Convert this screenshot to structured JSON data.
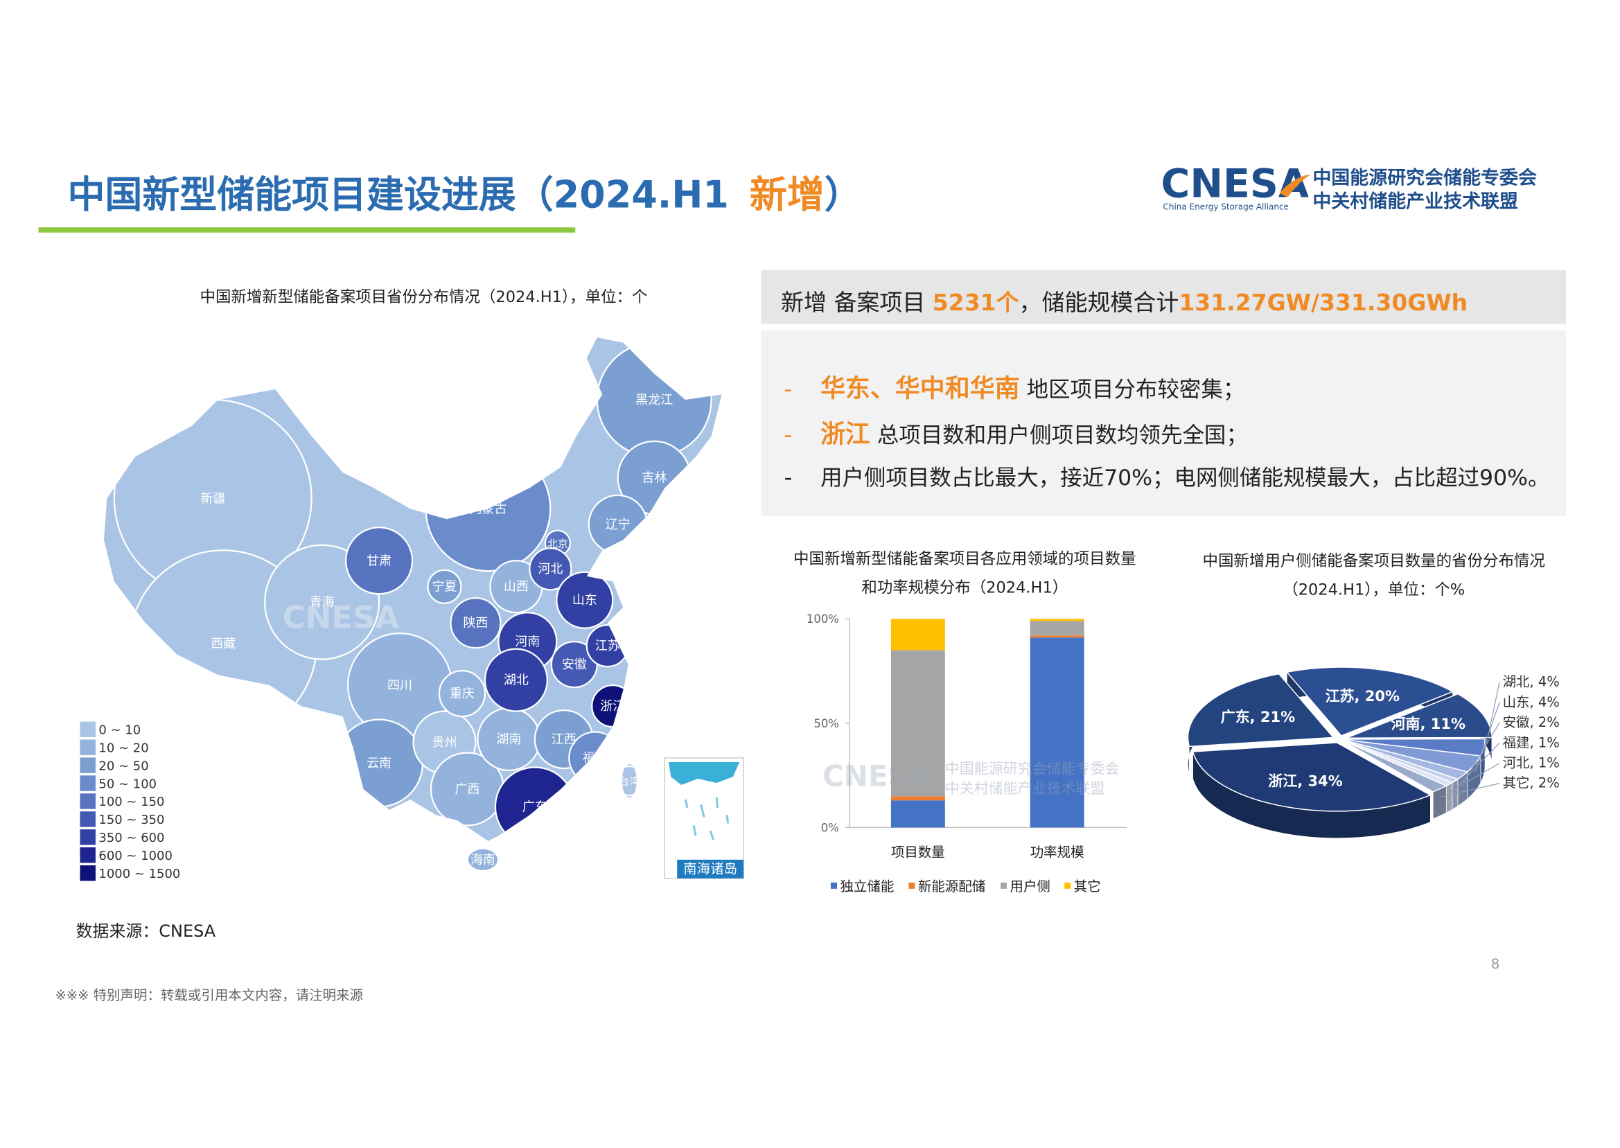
{
  "header": {
    "title": "中国新型储能项目建设进展（2024.H1",
    "title_highlight": "新增",
    "title_close": "）",
    "logo": "CNESA",
    "logo_sub": "China Energy Storage Alliance",
    "org_1": "中国能源研究会储能专委会",
    "org_2": "中关村储能产业技术联盟"
  },
  "map": {
    "title": "中国新增新型储能备案项目省份分布情况（2024.H1），单位：个",
    "legend": [
      {
        "label": "0 ~ 10",
        "color": "#a9c4e4"
      },
      {
        "label": "10 ~ 20",
        "color": "#93b3dd"
      },
      {
        "label": "20 ~ 50",
        "color": "#7c9fd2"
      },
      {
        "label": "50 ~ 100",
        "color": "#6a8ccb"
      },
      {
        "label": "100 ~ 150",
        "color": "#5874c0"
      },
      {
        "label": "150 ~ 350",
        "color": "#4459b3"
      },
      {
        "label": "350 ~ 600",
        "color": "#3240a3"
      },
      {
        "label": "600 ~ 1000",
        "color": "#1e2590"
      },
      {
        "label": "1000 ~ 1500",
        "color": "#0e1278"
      }
    ],
    "provinces": [
      {
        "name": "新疆",
        "level": 0
      },
      {
        "name": "西藏",
        "level": 0
      },
      {
        "name": "青海",
        "level": 0
      },
      {
        "name": "甘肃",
        "level": 4
      },
      {
        "name": "内蒙古",
        "level": 3
      },
      {
        "name": "黑龙江",
        "level": 2
      },
      {
        "name": "吉林",
        "level": 2
      },
      {
        "name": "辽宁",
        "level": 2
      },
      {
        "name": "四川",
        "level": 1
      },
      {
        "name": "云南",
        "level": 2
      },
      {
        "name": "贵州",
        "level": 0
      },
      {
        "name": "重庆",
        "level": 1
      },
      {
        "name": "广西",
        "level": 1
      },
      {
        "name": "湖南",
        "level": 1
      },
      {
        "name": "江西",
        "level": 2
      },
      {
        "name": "山西",
        "level": 1
      },
      {
        "name": "宁夏",
        "level": 2
      },
      {
        "name": "陕西",
        "level": 4
      },
      {
        "name": "福建",
        "level": 3
      },
      {
        "name": "北京",
        "level": 4
      },
      {
        "name": "河北",
        "level": 5
      },
      {
        "name": "安徽",
        "level": 5
      },
      {
        "name": "山东",
        "level": 6
      },
      {
        "name": "河南",
        "level": 6
      },
      {
        "name": "湖北",
        "level": 6
      },
      {
        "name": "江苏",
        "level": 6
      },
      {
        "name": "广东",
        "level": 7
      },
      {
        "name": "浙江",
        "level": 8
      },
      {
        "name": "海南",
        "level": 1
      },
      {
        "name": "台湾",
        "level": 0
      }
    ],
    "inset_label": "南海诸岛"
  },
  "summary": {
    "prefix": "新增 备案项目 ",
    "count": "5231个",
    "middle": "，储能规模合计",
    "scale": "131.27GW/331.30GWh",
    "bullets": [
      {
        "dash": "-",
        "highlight": "华东、华中和华南",
        "text": " 地区项目分布较密集；"
      },
      {
        "dash": "-",
        "highlight": "浙江",
        "text": " 总项目数和用户侧项目数均领先全国；"
      },
      {
        "dash": "-",
        "text": "用户侧项目数占比最大，接近70%；电网侧储能规模最大，占比超过90%。"
      }
    ]
  },
  "chart_data": [
    {
      "type": "bar",
      "title": "中国新增新型储能备案项目各应用领域的项目数量和功率规模分布（2024.H1）",
      "categories": [
        "项目数量",
        "功率规模"
      ],
      "series": [
        {
          "name": "独立储能",
          "color": "#4472c4",
          "values": [
            13,
            91
          ]
        },
        {
          "name": "新能源配储",
          "color": "#ed7d31",
          "values": [
            2,
            1
          ]
        },
        {
          "name": "用户侧",
          "color": "#a5a5a5",
          "values": [
            70,
            7
          ]
        },
        {
          "name": "其它",
          "color": "#ffc000",
          "values": [
            15,
            1
          ]
        }
      ],
      "ylim": [
        0,
        100
      ],
      "yticks": [
        {
          "value": 0,
          "label": "0%"
        },
        {
          "value": 50,
          "label": "50%"
        },
        {
          "value": 100,
          "label": "100%"
        }
      ]
    },
    {
      "type": "pie",
      "title": "中国新增用户侧储能备案项目数量的省份分布情况（2024.H1），单位：个%",
      "values": [
        20,
        11,
        4,
        4,
        2,
        1,
        1,
        2,
        34,
        21
      ],
      "value_labels": [
        "江苏, 20%",
        "河南, 11%",
        "湖北, 4%",
        "山东, 4%",
        "安徽, 2%",
        "福建, 1%",
        "河北, 1%",
        "其它, 2%",
        "浙江, 34%",
        "广东, 21%"
      ],
      "colors": [
        "#2c4f93",
        "#2a4b8c",
        "#5a7cc6",
        "#7f9ad5",
        "#a3b7e2",
        "#c3d1ed",
        "#dbe3f4",
        "#9aaacb",
        "#1f3a74",
        "#24447f"
      ]
    }
  ],
  "source": "数据来源：CNESA",
  "page_number": "8",
  "disclaimer": "※※※ 特别声明：转载或引用本文内容，请注明来源"
}
